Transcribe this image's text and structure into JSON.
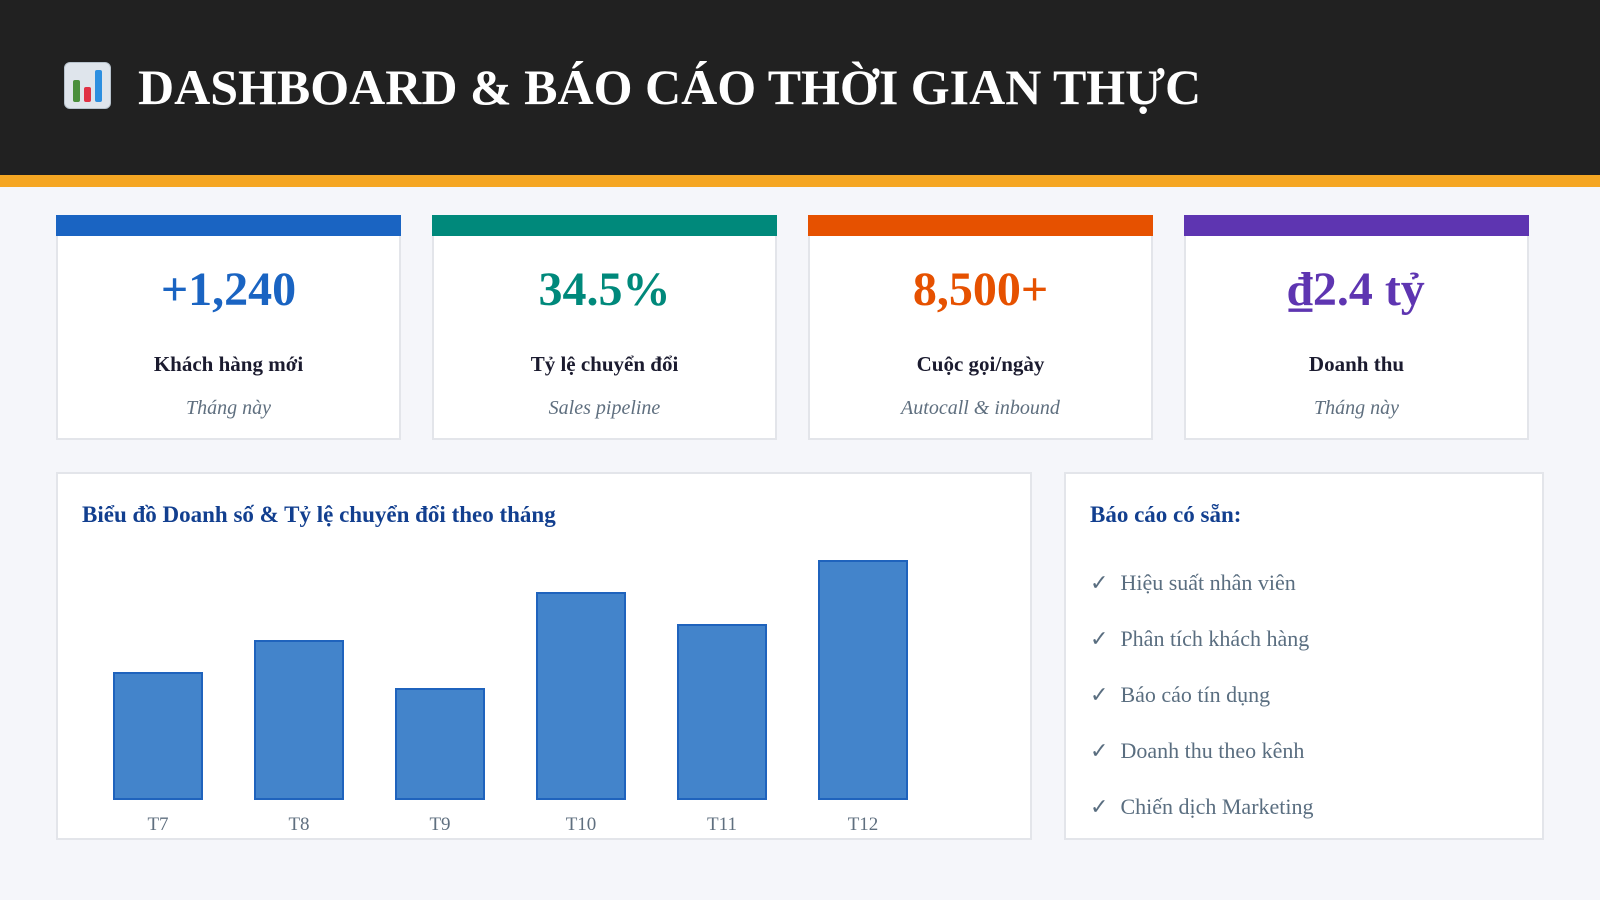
{
  "header": {
    "title": "DASHBOARD & BÁO CÁO THỜI GIAN THỰC",
    "icon": "bar-chart-icon"
  },
  "colors": {
    "header_bg": "#212121",
    "accent": "#f5a623",
    "blue": "#1a64c2",
    "teal": "#00897b",
    "orange": "#e65100",
    "purple": "#5e35b1"
  },
  "kpis": [
    {
      "value": "+1,240",
      "label": "Khách hàng mới",
      "sub": "Tháng này",
      "color": "#1a64c2"
    },
    {
      "value": "34.5%",
      "label": "Tỷ lệ chuyển đổi",
      "sub": "Sales pipeline",
      "color": "#00897b"
    },
    {
      "value": "8,500+",
      "label": "Cuộc gọi/ngày",
      "sub": "Autocall & inbound",
      "color": "#e65100"
    },
    {
      "value": "₫2.4 tỷ",
      "label": "Doanh thu",
      "sub": "Tháng này",
      "color": "#5e35b1"
    }
  ],
  "chart_data": {
    "type": "bar",
    "title": "Biểu đồ Doanh số & Tỷ lệ chuyển đổi theo tháng",
    "categories": [
      "T7",
      "T8",
      "T9",
      "T10",
      "T11",
      "T12"
    ],
    "values": [
      40,
      50,
      35,
      65,
      55,
      75
    ],
    "ylim": [
      0,
      75
    ],
    "xlabel": "",
    "ylabel": "",
    "grid": false
  },
  "reports": {
    "title": "Báo cáo có sẵn:",
    "check": "✓",
    "items": [
      "Hiệu suất nhân viên",
      "Phân tích khách hàng",
      "Báo cáo tín dụng",
      "Doanh thu theo kênh",
      "Chiến dịch Marketing"
    ]
  }
}
